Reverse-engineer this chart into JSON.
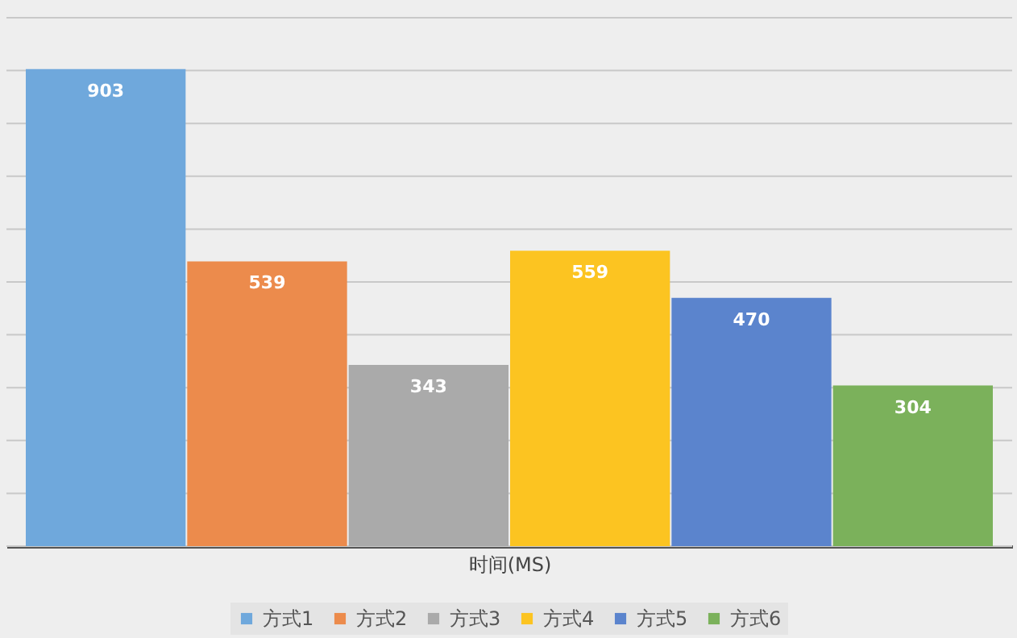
{
  "chart_data": {
    "type": "bar",
    "xlabel": "时间(MS)",
    "categories": [
      null
    ],
    "series": [
      {
        "name": "方式1",
        "color": "#6fa8dc",
        "values": [
          903
        ]
      },
      {
        "name": "方式2",
        "color": "#ec8b4c",
        "values": [
          539
        ]
      },
      {
        "name": "方式3",
        "color": "#aaaaaa",
        "values": [
          343
        ]
      },
      {
        "name": "方式4",
        "color": "#fcc421",
        "values": [
          559
        ]
      },
      {
        "name": "方式5",
        "color": "#5b84cd",
        "values": [
          470
        ]
      },
      {
        "name": "方式6",
        "color": "#7bb15b",
        "values": [
          304
        ]
      }
    ],
    "ylim": [
      0,
      1000
    ],
    "yticks": [
      {
        "value": 0,
        "label": null
      },
      {
        "value": 100,
        "label": null
      },
      {
        "value": 200,
        "label": null
      },
      {
        "value": 300,
        "label": null
      },
      {
        "value": 400,
        "label": null
      },
      {
        "value": 500,
        "label": null
      },
      {
        "value": 600,
        "label": null
      },
      {
        "value": 700,
        "label": null
      },
      {
        "value": 800,
        "label": null
      },
      {
        "value": 900,
        "label": null
      },
      {
        "value": 1000,
        "label": null
      }
    ],
    "grid": "y",
    "legend": "bottom",
    "data_labels": true
  }
}
